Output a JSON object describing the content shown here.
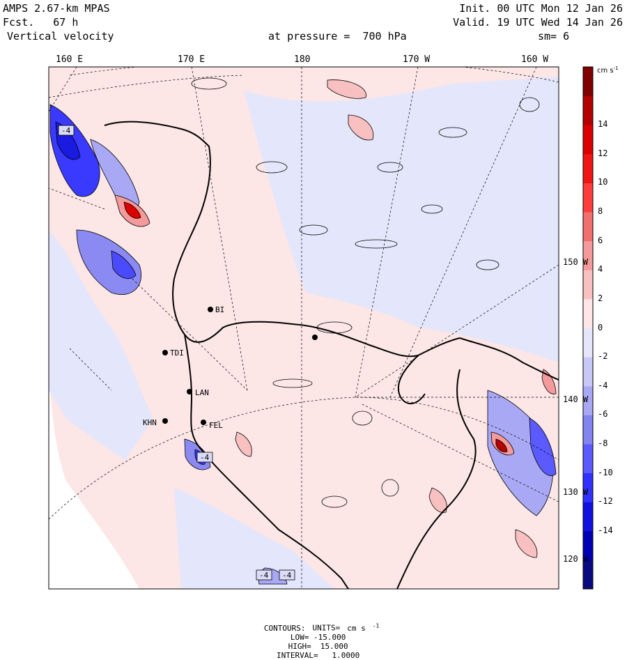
{
  "header": {
    "model": "AMPS 2.67-km MPAS",
    "forecast": "Fcst.   67 h",
    "field": "Vertical velocity",
    "init": "Init. 00 UTC Mon 12 Jan 26",
    "valid": "Valid. 19 UTC Wed 14 Jan 26",
    "level": "at pressure =  700 hPa",
    "smoothing": "sm= 6"
  },
  "lon_labels": [
    "160 E",
    "170 E",
    "180",
    "170 W",
    "160 W"
  ],
  "lat_labels": [
    "150 W",
    "140 W",
    "130 W",
    "120 W"
  ],
  "colorbar": {
    "units_main": "cm s",
    "units_exp": "-1",
    "ticks": [
      "14",
      "12",
      "10",
      "8",
      "6",
      "4",
      "2",
      "0",
      "-2",
      "-4",
      "-6",
      "-8",
      "-10",
      "-12",
      "-14"
    ],
    "colors": [
      "#0a0a80",
      "#0000b4",
      "#1010e0",
      "#3030ff",
      "#5a5aff",
      "#8484f0",
      "#a8a8f4",
      "#c8c8f8",
      "#e6e6fb",
      "#ffe6e6",
      "#f8c0c0",
      "#f49a9a",
      "#f07070",
      "#ff3c3c",
      "#f01414",
      "#dc0000",
      "#b40000",
      "#800000"
    ]
  },
  "stations": [
    "BI",
    "LAN",
    "TDI",
    "KHN",
    "FEL"
  ],
  "contour_labels": [
    "-4",
    "-4",
    "-4",
    "-4"
  ],
  "footer": {
    "contours_label": "CONTOURS:",
    "units_label": "UNITS=",
    "units_main": "cm s",
    "units_exp": "-1",
    "low": "LOW= -15.000",
    "high": "HIGH=  15.000",
    "interval": "INTERVAL=   1.0000"
  }
}
